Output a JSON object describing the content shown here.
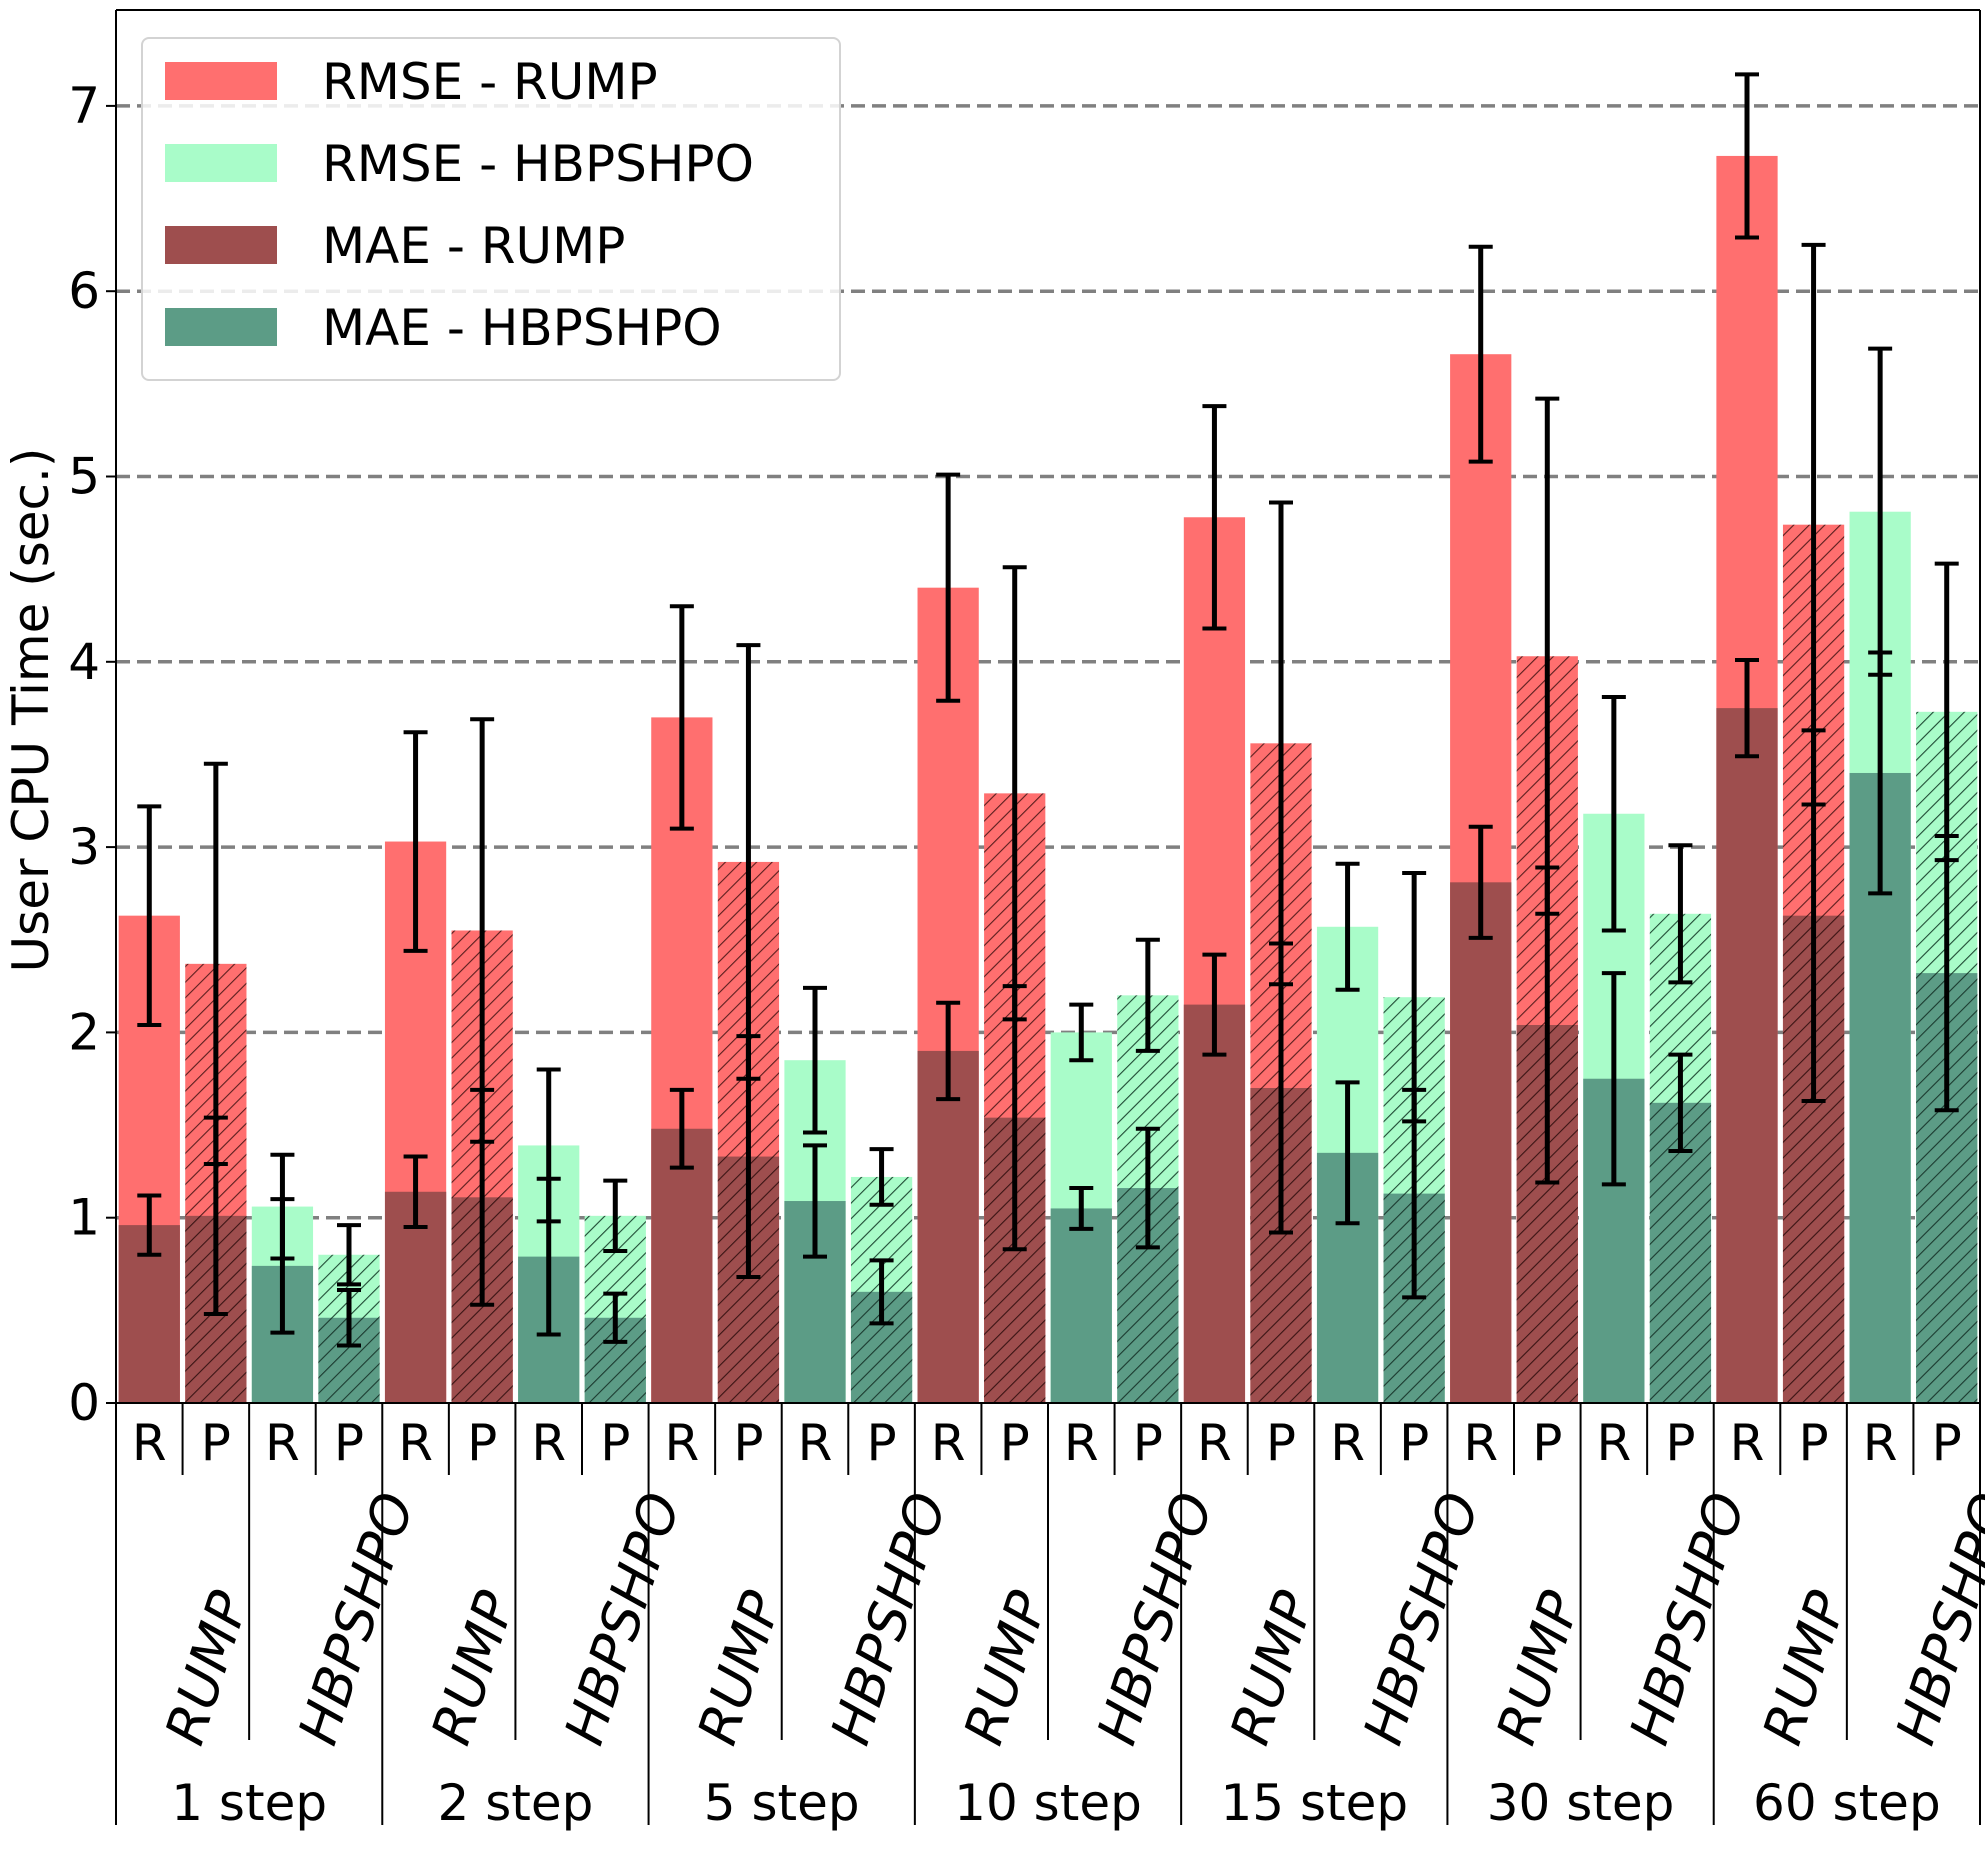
{
  "chart_data": {
    "type": "bar",
    "ylabel": "User CPU Time (sec.)",
    "ylim": [
      0,
      7.5
    ],
    "yticks": [
      0,
      1,
      2,
      3,
      4,
      5,
      6,
      7
    ],
    "grid": "horizontal dashed at y ticks",
    "legend_position": "top-left",
    "colors": {
      "rmse_rump": "#ff6f6f",
      "rmse_hbpshpo": "#a9fcc9",
      "mae_rump": "#9e4e4e",
      "mae_hbpshpo": "#5c9c86",
      "grid": "#808080",
      "errorbar": "#000000"
    },
    "legend": [
      {
        "label": "RMSE  - RUMP",
        "color": "#ff6f6f"
      },
      {
        "label": "RMSE  - HBPSHPO",
        "color": "#a9fcc9"
      },
      {
        "label": "MAE  - RUMP",
        "color": "#9e4e4e"
      },
      {
        "label": "MAE  - HBPSHPO",
        "color": "#5c9c86"
      }
    ],
    "sub_labels": [
      "R",
      "P"
    ],
    "method_labels": [
      "RUMP",
      "HBPSHPO"
    ],
    "hatched": "P bars are hatched",
    "groups": [
      {
        "label": "1 step",
        "rump": {
          "R": {
            "rmse": 2.63,
            "rmse_err": 0.59,
            "mae": 0.96,
            "mae_err": 0.16
          },
          "P": {
            "rmse": 2.37,
            "rmse_err": 1.08,
            "mae": 1.01,
            "mae_err": 0.53
          }
        },
        "hbpshpo": {
          "R": {
            "rmse": 1.06,
            "rmse_err": 0.28,
            "mae": 0.74,
            "mae_err": 0.36
          },
          "P": {
            "rmse": 0.8,
            "rmse_err": 0.16,
            "mae": 0.46,
            "mae_err": 0.15
          }
        }
      },
      {
        "label": "2 step",
        "rump": {
          "R": {
            "rmse": 3.03,
            "rmse_err": 0.59,
            "mae": 1.14,
            "mae_err": 0.19
          },
          "P": {
            "rmse": 2.55,
            "rmse_err": 1.14,
            "mae": 1.11,
            "mae_err": 0.58
          }
        },
        "hbpshpo": {
          "R": {
            "rmse": 1.39,
            "rmse_err": 0.41,
            "mae": 0.79,
            "mae_err": 0.42
          },
          "P": {
            "rmse": 1.01,
            "rmse_err": 0.19,
            "mae": 0.46,
            "mae_err": 0.13
          }
        }
      },
      {
        "label": "5 step",
        "rump": {
          "R": {
            "rmse": 3.7,
            "rmse_err": 0.6,
            "mae": 1.48,
            "mae_err": 0.21
          },
          "P": {
            "rmse": 2.92,
            "rmse_err": 1.17,
            "mae": 1.33,
            "mae_err": 0.65
          }
        },
        "hbpshpo": {
          "R": {
            "rmse": 1.85,
            "rmse_err": 0.39,
            "mae": 1.09,
            "mae_err": 0.3
          },
          "P": {
            "rmse": 1.22,
            "rmse_err": 0.15,
            "mae": 0.6,
            "mae_err": 0.17
          }
        }
      },
      {
        "label": "10 step",
        "rump": {
          "R": {
            "rmse": 4.4,
            "rmse_err": 0.61,
            "mae": 1.9,
            "mae_err": 0.26
          },
          "P": {
            "rmse": 3.29,
            "rmse_err": 1.22,
            "mae": 1.54,
            "mae_err": 0.71
          }
        },
        "hbpshpo": {
          "R": {
            "rmse": 2.0,
            "rmse_err": 0.15,
            "mae": 1.05,
            "mae_err": 0.11
          },
          "P": {
            "rmse": 2.2,
            "rmse_err": 0.3,
            "mae": 1.16,
            "mae_err": 0.32
          }
        }
      },
      {
        "label": "15 step",
        "rump": {
          "R": {
            "rmse": 4.78,
            "rmse_err": 0.6,
            "mae": 2.15,
            "mae_err": 0.27
          },
          "P": {
            "rmse": 3.56,
            "rmse_err": 1.3,
            "mae": 1.7,
            "mae_err": 0.78
          }
        },
        "hbpshpo": {
          "R": {
            "rmse": 2.57,
            "rmse_err": 0.34,
            "mae": 1.35,
            "mae_err": 0.38
          },
          "P": {
            "rmse": 2.19,
            "rmse_err": 0.67,
            "mae": 1.13,
            "mae_err": 0.56
          }
        }
      },
      {
        "label": "30 step",
        "rump": {
          "R": {
            "rmse": 5.66,
            "rmse_err": 0.58,
            "mae": 2.81,
            "mae_err": 0.3
          },
          "P": {
            "rmse": 4.03,
            "rmse_err": 1.39,
            "mae": 2.04,
            "mae_err": 0.85
          }
        },
        "hbpshpo": {
          "R": {
            "rmse": 3.18,
            "rmse_err": 0.63,
            "mae": 1.75,
            "mae_err": 0.57
          },
          "P": {
            "rmse": 2.64,
            "rmse_err": 0.37,
            "mae": 1.62,
            "mae_err": 0.26
          }
        }
      },
      {
        "label": "60 step",
        "rump": {
          "R": {
            "rmse": 6.73,
            "rmse_err": 0.44,
            "mae": 3.75,
            "mae_err": 0.26
          },
          "P": {
            "rmse": 4.74,
            "rmse_err": 1.51,
            "mae": 2.63,
            "mae_err": 1.0
          }
        },
        "hbpshpo": {
          "R": {
            "rmse": 4.81,
            "rmse_err": 0.88,
            "mae": 3.4,
            "mae_err": 0.65
          },
          "P": {
            "rmse": 3.73,
            "rmse_err": 0.8,
            "mae": 2.32,
            "mae_err": 0.74
          }
        }
      }
    ]
  }
}
